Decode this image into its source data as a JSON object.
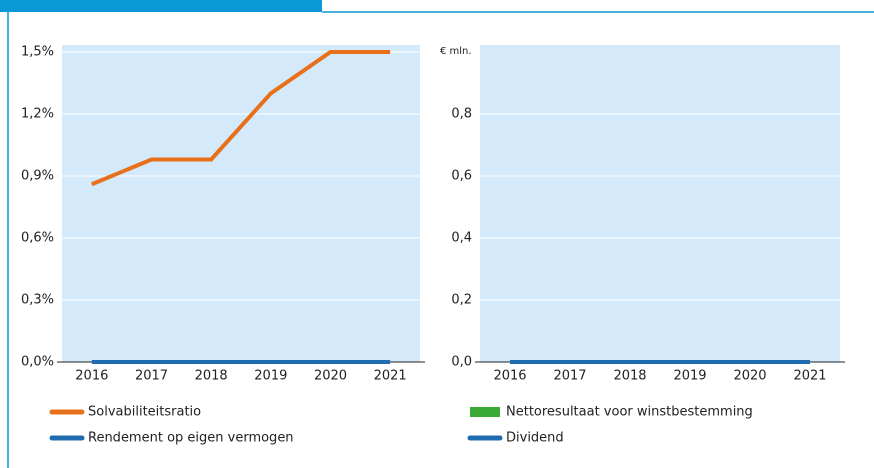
{
  "chart_data": [
    {
      "type": "line",
      "categories": [
        "2016",
        "2017",
        "2018",
        "2019",
        "2020",
        "2021"
      ],
      "series": [
        {
          "name": "Solvabiliteitsratio",
          "color": "#e8701a",
          "values": [
            0.86,
            0.98,
            0.98,
            1.3,
            1.5,
            1.5
          ]
        },
        {
          "name": "Rendement op eigen vermogen",
          "color": "#1f6cb0",
          "values": [
            0,
            0,
            0,
            0,
            0,
            0
          ]
        }
      ],
      "ylim": [
        0,
        1.5
      ],
      "yticks": [
        {
          "value": 0,
          "label": "0,0%"
        },
        {
          "value": 0.3,
          "label": "0,3%"
        },
        {
          "value": 0.6,
          "label": "0,6%"
        },
        {
          "value": 0.9,
          "label": "0,9%"
        },
        {
          "value": 1.2,
          "label": "1,2%"
        },
        {
          "value": 1.5,
          "label": "1,5%"
        }
      ],
      "grid": true
    },
    {
      "type": "bar-line",
      "ylabel": "€ mln.",
      "categories": [
        "2016",
        "2017",
        "2018",
        "2019",
        "2020",
        "2021"
      ],
      "series": [
        {
          "name": "Nettoresultaat voor winstbestemming",
          "type": "bar",
          "color": "#3aaa35",
          "values": [
            0,
            0,
            0,
            0,
            0,
            0
          ]
        },
        {
          "name": "Dividend",
          "type": "line",
          "color": "#1f6cb0",
          "values": [
            0,
            0,
            0,
            0,
            0,
            0
          ]
        }
      ],
      "ylim": [
        0,
        1.0
      ],
      "yticks": [
        {
          "value": 0,
          "label": "0,0"
        },
        {
          "value": 0.2,
          "label": "0,2"
        },
        {
          "value": 0.4,
          "label": "0,4"
        },
        {
          "value": 0.6,
          "label": "0,6"
        },
        {
          "value": 0.8,
          "label": "0,8"
        }
      ],
      "grid": true
    }
  ]
}
